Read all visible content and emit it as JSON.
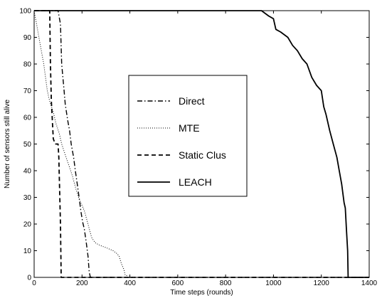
{
  "chart_data": {
    "type": "line",
    "title": "",
    "xlabel": "Time steps (rounds)",
    "ylabel": "Number of sensors still alive",
    "xlim": [
      0,
      1400
    ],
    "ylim": [
      0,
      100
    ],
    "xticks": [
      0,
      200,
      400,
      600,
      800,
      1000,
      1200,
      1400
    ],
    "yticks": [
      0,
      10,
      20,
      30,
      40,
      50,
      60,
      70,
      80,
      90,
      100
    ],
    "grid": false,
    "legend_position": "center",
    "series": [
      {
        "name": "Direct",
        "style": "dashdot",
        "x": [
          0,
          100,
          110,
          115,
          125,
          130,
          140,
          148,
          155,
          165,
          172,
          180,
          188,
          195,
          202,
          210,
          218,
          225,
          230,
          235,
          1400
        ],
        "y": [
          100,
          100,
          95,
          80,
          70,
          65,
          59,
          55,
          50,
          45,
          40,
          35,
          30,
          25,
          21,
          18,
          13,
          8,
          2,
          0,
          0
        ]
      },
      {
        "name": "MTE",
        "style": "dotted",
        "x": [
          0,
          10,
          20,
          30,
          40,
          55,
          65,
          80,
          90,
          105,
          115,
          130,
          145,
          160,
          175,
          190,
          210,
          225,
          240,
          255,
          275,
          305,
          330,
          345,
          355,
          365,
          375,
          380,
          385,
          390,
          1400
        ],
        "y": [
          100,
          95,
          90,
          85,
          80,
          70,
          66,
          62,
          58,
          54,
          50,
          46,
          42,
          38,
          33,
          29,
          25,
          20,
          15,
          13,
          12,
          11,
          10,
          9,
          8,
          5,
          3,
          1,
          1,
          0,
          0
        ]
      },
      {
        "name": "Static Clus",
        "style": "dashed",
        "x": [
          0,
          65,
          68,
          72,
          80,
          88,
          100,
          103,
          106,
          110,
          113,
          1400
        ],
        "y": [
          100,
          100,
          80,
          66,
          52,
          50,
          50,
          45,
          34,
          20,
          0,
          0
        ]
      },
      {
        "name": "LEACH",
        "style": "solid",
        "x": [
          0,
          950,
          980,
          1000,
          1010,
          1030,
          1060,
          1080,
          1100,
          1120,
          1140,
          1160,
          1180,
          1200,
          1210,
          1220,
          1235,
          1250,
          1265,
          1275,
          1285,
          1295,
          1300,
          1305,
          1310,
          1312,
          1400
        ],
        "y": [
          100,
          100,
          98,
          97,
          93,
          92,
          90,
          87,
          85,
          82,
          80,
          75,
          72,
          70,
          64,
          61,
          55,
          50,
          45,
          40,
          35,
          28,
          26,
          18,
          10,
          0,
          0
        ]
      }
    ]
  }
}
